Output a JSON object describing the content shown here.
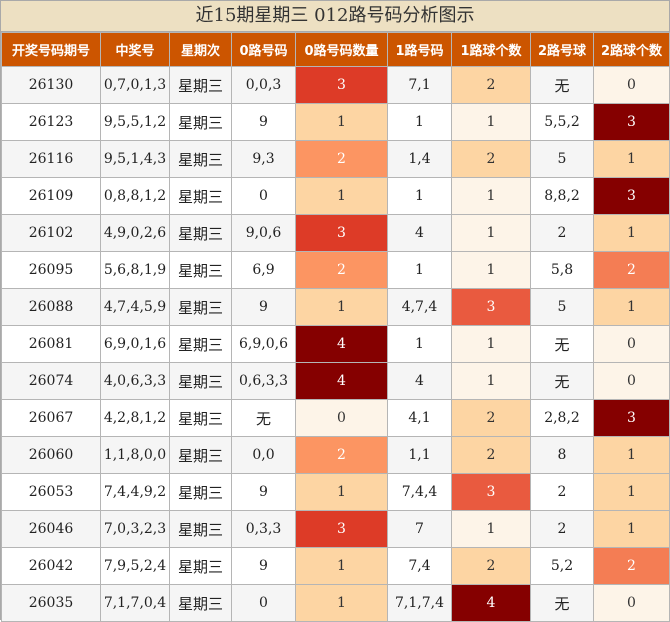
{
  "title": "近15期星期三 012路号码分析图示",
  "headers": [
    "开奖号码期号",
    "中奖号",
    "星期次",
    "0路号码",
    "0路号码数量",
    "1路号码",
    "1路球个数",
    "2路号球",
    "2路球个数"
  ],
  "colors": {
    "header_bg": "#cc5500",
    "title_bg": "#ede0c2",
    "level_0": "#fdf4e8",
    "level_1": "#fdd5a3",
    "level_2": "#fc9562",
    "level_3": "#dd3b27",
    "level_4": "#850000"
  },
  "rows": [
    {
      "period": "26130",
      "number": "0,7,0,1,3",
      "weekday": "星期三",
      "r0": "0,0,3",
      "r0_count": "3",
      "r1": "7,1",
      "r1_count": "2",
      "r2": "无",
      "r2_count": "0"
    },
    {
      "period": "26123",
      "number": "9,5,5,1,2",
      "weekday": "星期三",
      "r0": "9",
      "r0_count": "1",
      "r1": "1",
      "r1_count": "1",
      "r2": "5,5,2",
      "r2_count": "3"
    },
    {
      "period": "26116",
      "number": "9,5,1,4,3",
      "weekday": "星期三",
      "r0": "9,3",
      "r0_count": "2",
      "r1": "1,4",
      "r1_count": "2",
      "r2": "5",
      "r2_count": "1"
    },
    {
      "period": "26109",
      "number": "0,8,8,1,2",
      "weekday": "星期三",
      "r0": "0",
      "r0_count": "1",
      "r1": "1",
      "r1_count": "1",
      "r2": "8,8,2",
      "r2_count": "3"
    },
    {
      "period": "26102",
      "number": "4,9,0,2,6",
      "weekday": "星期三",
      "r0": "9,0,6",
      "r0_count": "3",
      "r1": "4",
      "r1_count": "1",
      "r2": "2",
      "r2_count": "1"
    },
    {
      "period": "26095",
      "number": "5,6,8,1,9",
      "weekday": "星期三",
      "r0": "6,9",
      "r0_count": "2",
      "r1": "1",
      "r1_count": "1",
      "r2": "5,8",
      "r2_count": "2"
    },
    {
      "period": "26088",
      "number": "4,7,4,5,9",
      "weekday": "星期三",
      "r0": "9",
      "r0_count": "1",
      "r1": "4,7,4",
      "r1_count": "3",
      "r2": "5",
      "r2_count": "1"
    },
    {
      "period": "26081",
      "number": "6,9,0,1,6",
      "weekday": "星期三",
      "r0": "6,9,0,6",
      "r0_count": "4",
      "r1": "1",
      "r1_count": "1",
      "r2": "无",
      "r2_count": "0"
    },
    {
      "period": "26074",
      "number": "4,0,6,3,3",
      "weekday": "星期三",
      "r0": "0,6,3,3",
      "r0_count": "4",
      "r1": "4",
      "r1_count": "1",
      "r2": "无",
      "r2_count": "0"
    },
    {
      "period": "26067",
      "number": "4,2,8,1,2",
      "weekday": "星期三",
      "r0": "无",
      "r0_count": "0",
      "r1": "4,1",
      "r1_count": "2",
      "r2": "2,8,2",
      "r2_count": "3"
    },
    {
      "period": "26060",
      "number": "1,1,8,0,0",
      "weekday": "星期三",
      "r0": "0,0",
      "r0_count": "2",
      "r1": "1,1",
      "r1_count": "2",
      "r2": "8",
      "r2_count": "1"
    },
    {
      "period": "26053",
      "number": "7,4,4,9,2",
      "weekday": "星期三",
      "r0": "9",
      "r0_count": "1",
      "r1": "7,4,4",
      "r1_count": "3",
      "r2": "2",
      "r2_count": "1"
    },
    {
      "period": "26046",
      "number": "7,0,3,2,3",
      "weekday": "星期三",
      "r0": "0,3,3",
      "r0_count": "3",
      "r1": "7",
      "r1_count": "1",
      "r2": "2",
      "r2_count": "1"
    },
    {
      "period": "26042",
      "number": "7,9,5,2,4",
      "weekday": "星期三",
      "r0": "9",
      "r0_count": "1",
      "r1": "7,4",
      "r1_count": "2",
      "r2": "5,2",
      "r2_count": "2"
    },
    {
      "period": "26035",
      "number": "7,1,7,0,4",
      "weekday": "星期三",
      "r0": "0",
      "r0_count": "1",
      "r1": "7,1,7,4",
      "r1_count": "4",
      "r2": "无",
      "r2_count": "0"
    }
  ]
}
